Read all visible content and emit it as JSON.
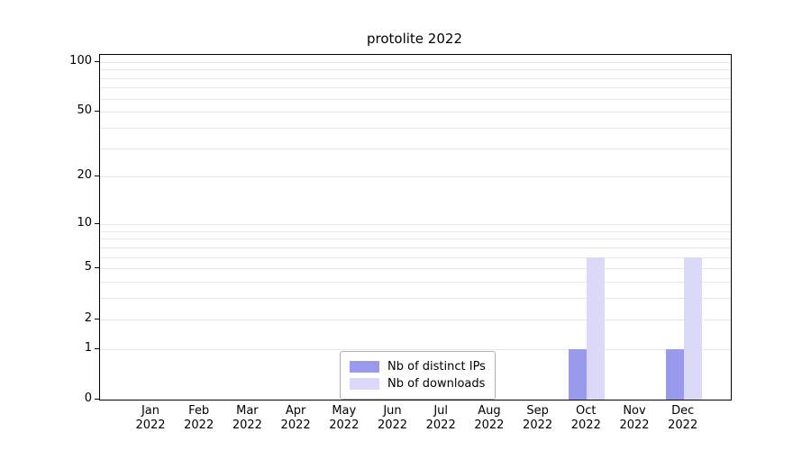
{
  "chart_data": {
    "type": "bar",
    "title": "protolite 2022",
    "categories": [
      "Jan",
      "Feb",
      "Mar",
      "Apr",
      "May",
      "Jun",
      "Jul",
      "Aug",
      "Sep",
      "Oct",
      "Nov",
      "Dec"
    ],
    "year_label": "2022",
    "series": [
      {
        "name": "Nb of distinct IPs",
        "color": "#9999ee",
        "values": [
          0,
          0,
          0,
          0,
          0,
          0,
          0,
          0,
          0,
          1,
          0,
          1
        ]
      },
      {
        "name": "Nb of downloads",
        "color": "#dadaf8",
        "values": [
          0,
          0,
          0,
          0,
          0,
          0,
          0,
          0,
          0,
          6,
          0,
          6
        ]
      }
    ],
    "yscale": "log1p",
    "ylim": [
      0,
      110
    ],
    "y_ticks": [
      0,
      1,
      2,
      5,
      10,
      20,
      50,
      100
    ],
    "gridlines": [
      1,
      2,
      3,
      4,
      5,
      6,
      7,
      8,
      9,
      10,
      20,
      30,
      40,
      50,
      60,
      70,
      80,
      90,
      100
    ],
    "grid": true,
    "legend": {
      "position": "bottom-center"
    },
    "xlabel": "",
    "ylabel": ""
  }
}
